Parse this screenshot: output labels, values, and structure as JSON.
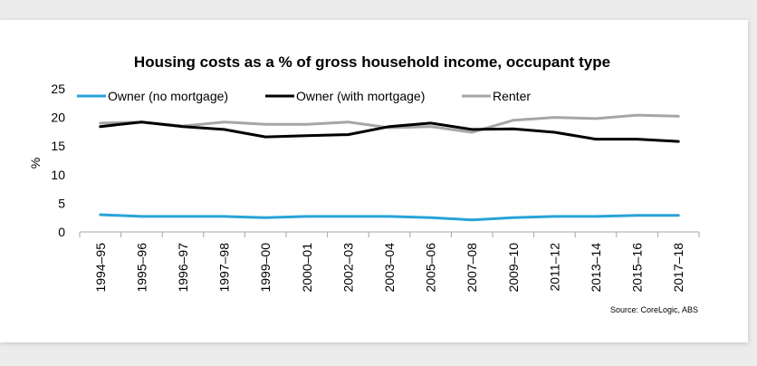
{
  "chart_data": {
    "type": "line",
    "title": "Housing costs as a % of gross household income, occupant type",
    "xlabel": "",
    "ylabel": "%",
    "source": "Source: CoreLogic, ABS",
    "ylim": [
      0,
      25
    ],
    "yticks": [
      0,
      5,
      10,
      15,
      20,
      25
    ],
    "grid": false,
    "legend_position": "top",
    "categories": [
      "1994–95",
      "1995–96",
      "1996–97",
      "1997–98",
      "1999–00",
      "2000–01",
      "2002–03",
      "2003–04",
      "2005–06",
      "2007–08",
      "2009–10",
      "2011–12",
      "2013–14",
      "2015–16",
      "2017–18"
    ],
    "series": [
      {
        "name": "Owner (no mortgage)",
        "color": "#29a3d9",
        "values": [
          3.0,
          2.7,
          2.7,
          2.7,
          2.5,
          2.7,
          2.7,
          2.7,
          2.5,
          2.1,
          2.5,
          2.7,
          2.7,
          2.9,
          2.9
        ]
      },
      {
        "name": "Owner (with mortgage)",
        "color": "#000000",
        "values": [
          18.4,
          19.2,
          18.4,
          17.9,
          16.6,
          16.8,
          17.0,
          18.4,
          19.0,
          17.9,
          18.0,
          17.4,
          16.2,
          16.2,
          15.8
        ]
      },
      {
        "name": "Renter",
        "color": "#a6a6a6",
        "values": [
          19.0,
          19.2,
          18.5,
          19.2,
          18.8,
          18.8,
          19.2,
          18.2,
          18.4,
          17.4,
          19.5,
          20.0,
          19.8,
          20.4,
          20.2
        ]
      }
    ]
  }
}
